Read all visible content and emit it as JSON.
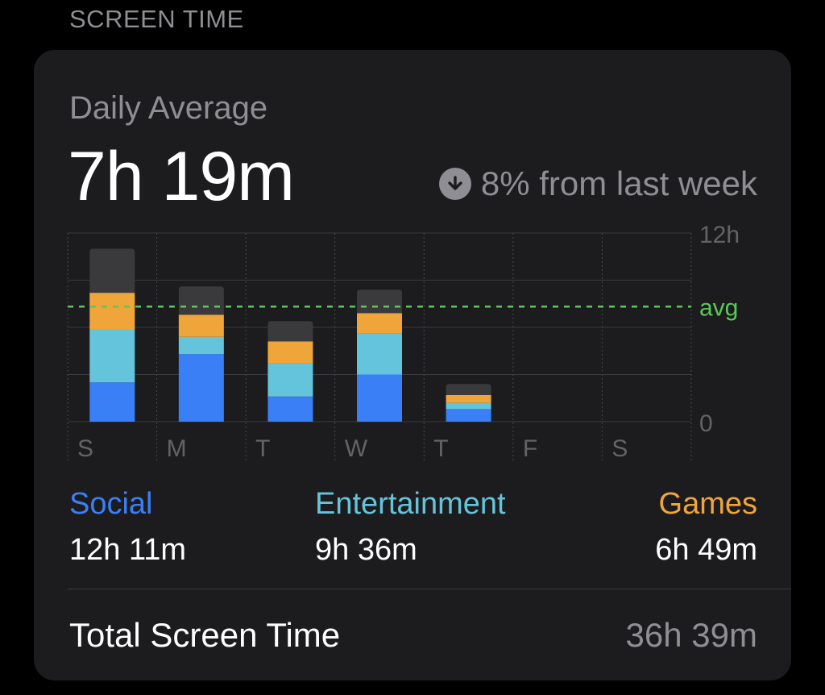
{
  "section": {
    "title": "SCREEN TIME"
  },
  "summary": {
    "label": "Daily Average",
    "value": "7h 19m",
    "change_text": "8% from last week",
    "change_icon": "arrow-down-circle-icon"
  },
  "colors": {
    "social": "#3a7ff6",
    "entertainment": "#64c4dc",
    "games": "#f0a53a",
    "other": "#3a3a3c",
    "avg_line": "#5ac85a",
    "muted": "#8e8e93"
  },
  "chart_data": {
    "type": "bar",
    "stacked": true,
    "categories": [
      "S",
      "M",
      "T",
      "W",
      "T",
      "F",
      "S"
    ],
    "series": [
      {
        "name": "Social",
        "values": [
          2.5,
          4.3,
          1.6,
          3.0,
          0.8,
          0,
          0
        ]
      },
      {
        "name": "Entertainment",
        "values": [
          3.4,
          1.1,
          2.1,
          2.6,
          0.4,
          0,
          0
        ]
      },
      {
        "name": "Games",
        "values": [
          2.3,
          1.4,
          1.4,
          1.3,
          0.5,
          0,
          0
        ]
      },
      {
        "values": [
          2.8,
          1.8,
          1.3,
          1.5,
          0.7,
          0,
          0
        ]
      }
    ],
    "ylim": [
      0,
      12
    ],
    "y_ticks": [
      "12h",
      "0"
    ],
    "avg_value": 7.32,
    "avg_label": "avg"
  },
  "legend": [
    {
      "name": "Social",
      "value": "12h 11m",
      "color": "#3a7ff6"
    },
    {
      "name": "Entertainment",
      "value": "9h 36m",
      "color": "#64c4dc"
    },
    {
      "name": "Games",
      "value": "6h 49m",
      "color": "#f0a53a"
    }
  ],
  "total": {
    "label": "Total Screen Time",
    "value": "36h 39m"
  }
}
